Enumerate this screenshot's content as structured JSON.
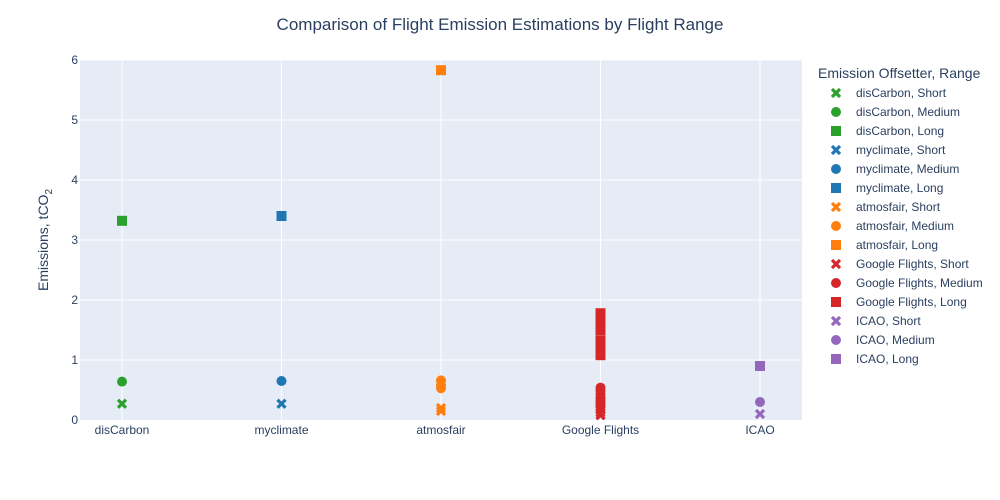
{
  "chart_data": {
    "type": "scatter",
    "title": "Comparison of Flight Emission Estimations by Flight Range",
    "xlabel": "",
    "ylabel": "Emissions, tCO",
    "ylabel_subscript": "2",
    "categories": [
      "disCarbon",
      "myclimate",
      "atmosfair",
      "Google Flights",
      "ICAO"
    ],
    "ylim": [
      0,
      6
    ],
    "yticks": [
      0,
      1,
      2,
      3,
      4,
      5,
      6
    ],
    "grid": true,
    "legend_position": "right",
    "legend_title": "Emission Offsetter, Range",
    "plot_background": "#e5ecf6",
    "series": [
      {
        "name": "disCarbon, Short",
        "color": "#2ca02c",
        "symbol": "x",
        "x": [
          "disCarbon"
        ],
        "y": [
          0.27
        ]
      },
      {
        "name": "disCarbon, Medium",
        "color": "#2ca02c",
        "symbol": "circle",
        "x": [
          "disCarbon"
        ],
        "y": [
          0.64
        ]
      },
      {
        "name": "disCarbon, Long",
        "color": "#2ca02c",
        "symbol": "square",
        "x": [
          "disCarbon"
        ],
        "y": [
          3.32
        ]
      },
      {
        "name": "myclimate, Short",
        "color": "#1f77b4",
        "symbol": "x",
        "x": [
          "myclimate"
        ],
        "y": [
          0.27
        ]
      },
      {
        "name": "myclimate, Medium",
        "color": "#1f77b4",
        "symbol": "circle",
        "x": [
          "myclimate"
        ],
        "y": [
          0.65
        ]
      },
      {
        "name": "myclimate, Long",
        "color": "#1f77b4",
        "symbol": "square",
        "x": [
          "myclimate"
        ],
        "y": [
          3.4
        ]
      },
      {
        "name": "atmosfair, Short",
        "color": "#ff7f0e",
        "symbol": "x",
        "x": [
          "atmosfair",
          "atmosfair"
        ],
        "y": [
          0.15,
          0.2
        ]
      },
      {
        "name": "atmosfair, Medium",
        "color": "#ff7f0e",
        "symbol": "circle",
        "x": [
          "atmosfair",
          "atmosfair",
          "atmosfair"
        ],
        "y": [
          0.53,
          0.58,
          0.66
        ]
      },
      {
        "name": "atmosfair, Long",
        "color": "#ff7f0e",
        "symbol": "square",
        "x": [
          "atmosfair"
        ],
        "y": [
          5.83
        ]
      },
      {
        "name": "Google Flights, Short",
        "color": "#d62728",
        "symbol": "x",
        "x": [
          "Google Flights",
          "Google Flights",
          "Google Flights",
          "Google Flights"
        ],
        "y": [
          0.08,
          0.12,
          0.16,
          0.2
        ]
      },
      {
        "name": "Google Flights, Medium",
        "color": "#d62728",
        "symbol": "circle",
        "x": [
          "Google Flights",
          "Google Flights",
          "Google Flights",
          "Google Flights",
          "Google Flights",
          "Google Flights",
          "Google Flights"
        ],
        "y": [
          0.22,
          0.27,
          0.32,
          0.37,
          0.43,
          0.49,
          0.54
        ]
      },
      {
        "name": "Google Flights, Long",
        "color": "#d62728",
        "symbol": "square",
        "x": [
          "Google Flights",
          "Google Flights",
          "Google Flights",
          "Google Flights",
          "Google Flights",
          "Google Flights",
          "Google Flights",
          "Google Flights",
          "Google Flights"
        ],
        "y": [
          1.08,
          1.12,
          1.18,
          1.25,
          1.33,
          1.5,
          1.6,
          1.7,
          1.78
        ]
      },
      {
        "name": "ICAO, Short",
        "color": "#9467bd",
        "symbol": "x",
        "x": [
          "ICAO"
        ],
        "y": [
          0.1
        ]
      },
      {
        "name": "ICAO, Medium",
        "color": "#9467bd",
        "symbol": "circle",
        "x": [
          "ICAO"
        ],
        "y": [
          0.3
        ]
      },
      {
        "name": "ICAO, Long",
        "color": "#9467bd",
        "symbol": "square",
        "x": [
          "ICAO"
        ],
        "y": [
          0.9
        ]
      }
    ]
  }
}
